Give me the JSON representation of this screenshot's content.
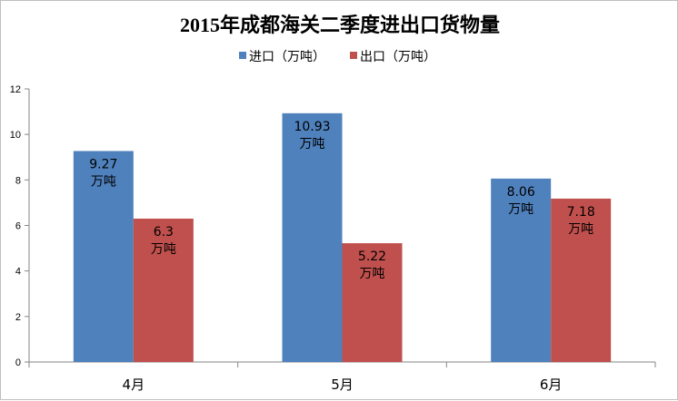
{
  "chart_data": {
    "type": "bar",
    "title": "2015年成都海关二季度进出口货物量",
    "categories": [
      "4月",
      "5月",
      "6月"
    ],
    "series": [
      {
        "name": "进口（万吨）",
        "color": "#4f81bd",
        "values": [
          9.27,
          10.93,
          8.06
        ],
        "labels": [
          [
            "9.27",
            "万吨"
          ],
          [
            "10.93",
            "万吨"
          ],
          [
            "8.06",
            "万吨"
          ]
        ]
      },
      {
        "name": "出口（万吨）",
        "color": "#c0504d",
        "values": [
          6.3,
          5.22,
          7.18
        ],
        "labels": [
          [
            "6.3",
            "万吨"
          ],
          [
            "5.22",
            "万吨"
          ],
          [
            "7.18",
            "万吨"
          ]
        ]
      }
    ],
    "ylim": [
      0,
      12
    ],
    "yticks": [
      "0",
      "2",
      "4",
      "6",
      "8",
      "10",
      "12"
    ],
    "xlabel": "",
    "ylabel": "",
    "grid": false,
    "legend": "top"
  }
}
